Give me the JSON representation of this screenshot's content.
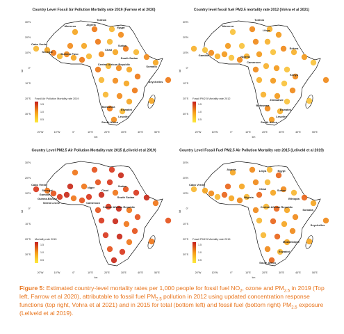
{
  "axes": {
    "lat": [
      "30°N",
      "20°N",
      "10°N",
      "0°",
      "10°S",
      "20°S",
      "30°S"
    ],
    "lon": [
      "20°W",
      "10°W",
      "0°",
      "10°E",
      "20°E",
      "30°E",
      "40°E",
      "50°E"
    ],
    "lat_label": "lat",
    "lon_label": "lon"
  },
  "panels": [
    {
      "title": "Country Level Fossil Air Pollution Mortality rate 2019 (Farrow et al 2020)",
      "legend_title": "Fossil Air Pollution Mortality rate 2019",
      "legend_ticks": [
        "1.5",
        "1.0",
        "0.5"
      ],
      "labels": [
        "Tunisia",
        "Morocco",
        "Algeria",
        "Egypt",
        "Cabo Verde",
        "Senegal",
        "Burkina Faso",
        "Chad",
        "Sudan",
        "Central African Republic",
        "South Sudan",
        "Somalia",
        "Seychelles",
        "Botswana",
        "Eswatini",
        "South Africa",
        "Lesotho"
      ]
    },
    {
      "title": "Country level fossil fuel PM2.5 mortality rate 2012 (Vohra et al 2021)",
      "legend_title": "Fossil PM2.5 Mortality rate 2012",
      "legend_ticks": [
        "1.5",
        "1.0",
        "0.5"
      ],
      "labels": [
        "Tunisia",
        "Morocco",
        "Libya",
        "Gambia",
        "Eritrea",
        "Nigeria",
        "Cameroon",
        "Kenya",
        "Zimbabwe",
        "Botswana",
        "Eswatini",
        "South Africa",
        "Lesotho"
      ]
    },
    {
      "title": "Country Level PM2.5 Air Pollution Mortality rate 2015 (Leliveld et al 2019)",
      "legend_title": "Mortality rate 2015",
      "legend_ticks": [
        "1.5",
        "1.0",
        "0.5"
      ],
      "labels": [
        "Cabo Verde",
        "Senegal",
        "Gambia",
        "Guinea-Bissau",
        "Sierra Leone",
        "Niger",
        "Chad",
        "Sudan",
        "South Sudan",
        "Cameroon",
        "Central African Republic"
      ]
    },
    {
      "title": "Country Level Fossil Fuel PM2.5 Air Pollution Mortality rate 2015 (Leliveld et al 2019)",
      "legend_title": "Fossil PM2.5 Mortality rate 2015",
      "legend_ticks": [
        "1.5",
        "1.0",
        "0.5"
      ],
      "labels": [
        "Algeria",
        "Libya",
        "Egypt",
        "Cabo Verde",
        "Chad",
        "Sudan",
        "Nigeria",
        "Ethiopia",
        "Central African Republic",
        "Somalia",
        "Seychelles",
        "Mozambique",
        "Eswatini",
        "South Africa"
      ]
    }
  ],
  "caption": {
    "label": "Figure 5:",
    "parts": [
      {
        "text": " Estimated country-level mortality rates per 1,000 people for fossil fuel NO"
      },
      {
        "text": "2",
        "sub": true
      },
      {
        "text": ", ozone and PM"
      },
      {
        "text": "2.5",
        "sub": true
      },
      {
        "text": " in 2019 (Top left, Farrow et al 2020), attributable to fossil fuel PM"
      },
      {
        "text": "2.5",
        "sub": true
      },
      {
        "text": " pollution in 2012 using updated concentration response functions (top right, Vohra et al 2021) and in 2015 for total (bottom left) and fossil fuel (bottom right) PM"
      },
      {
        "text": "2.5",
        "sub": true
      },
      {
        "text": " exposure (Leliveld et al 2019)."
      }
    ]
  }
}
